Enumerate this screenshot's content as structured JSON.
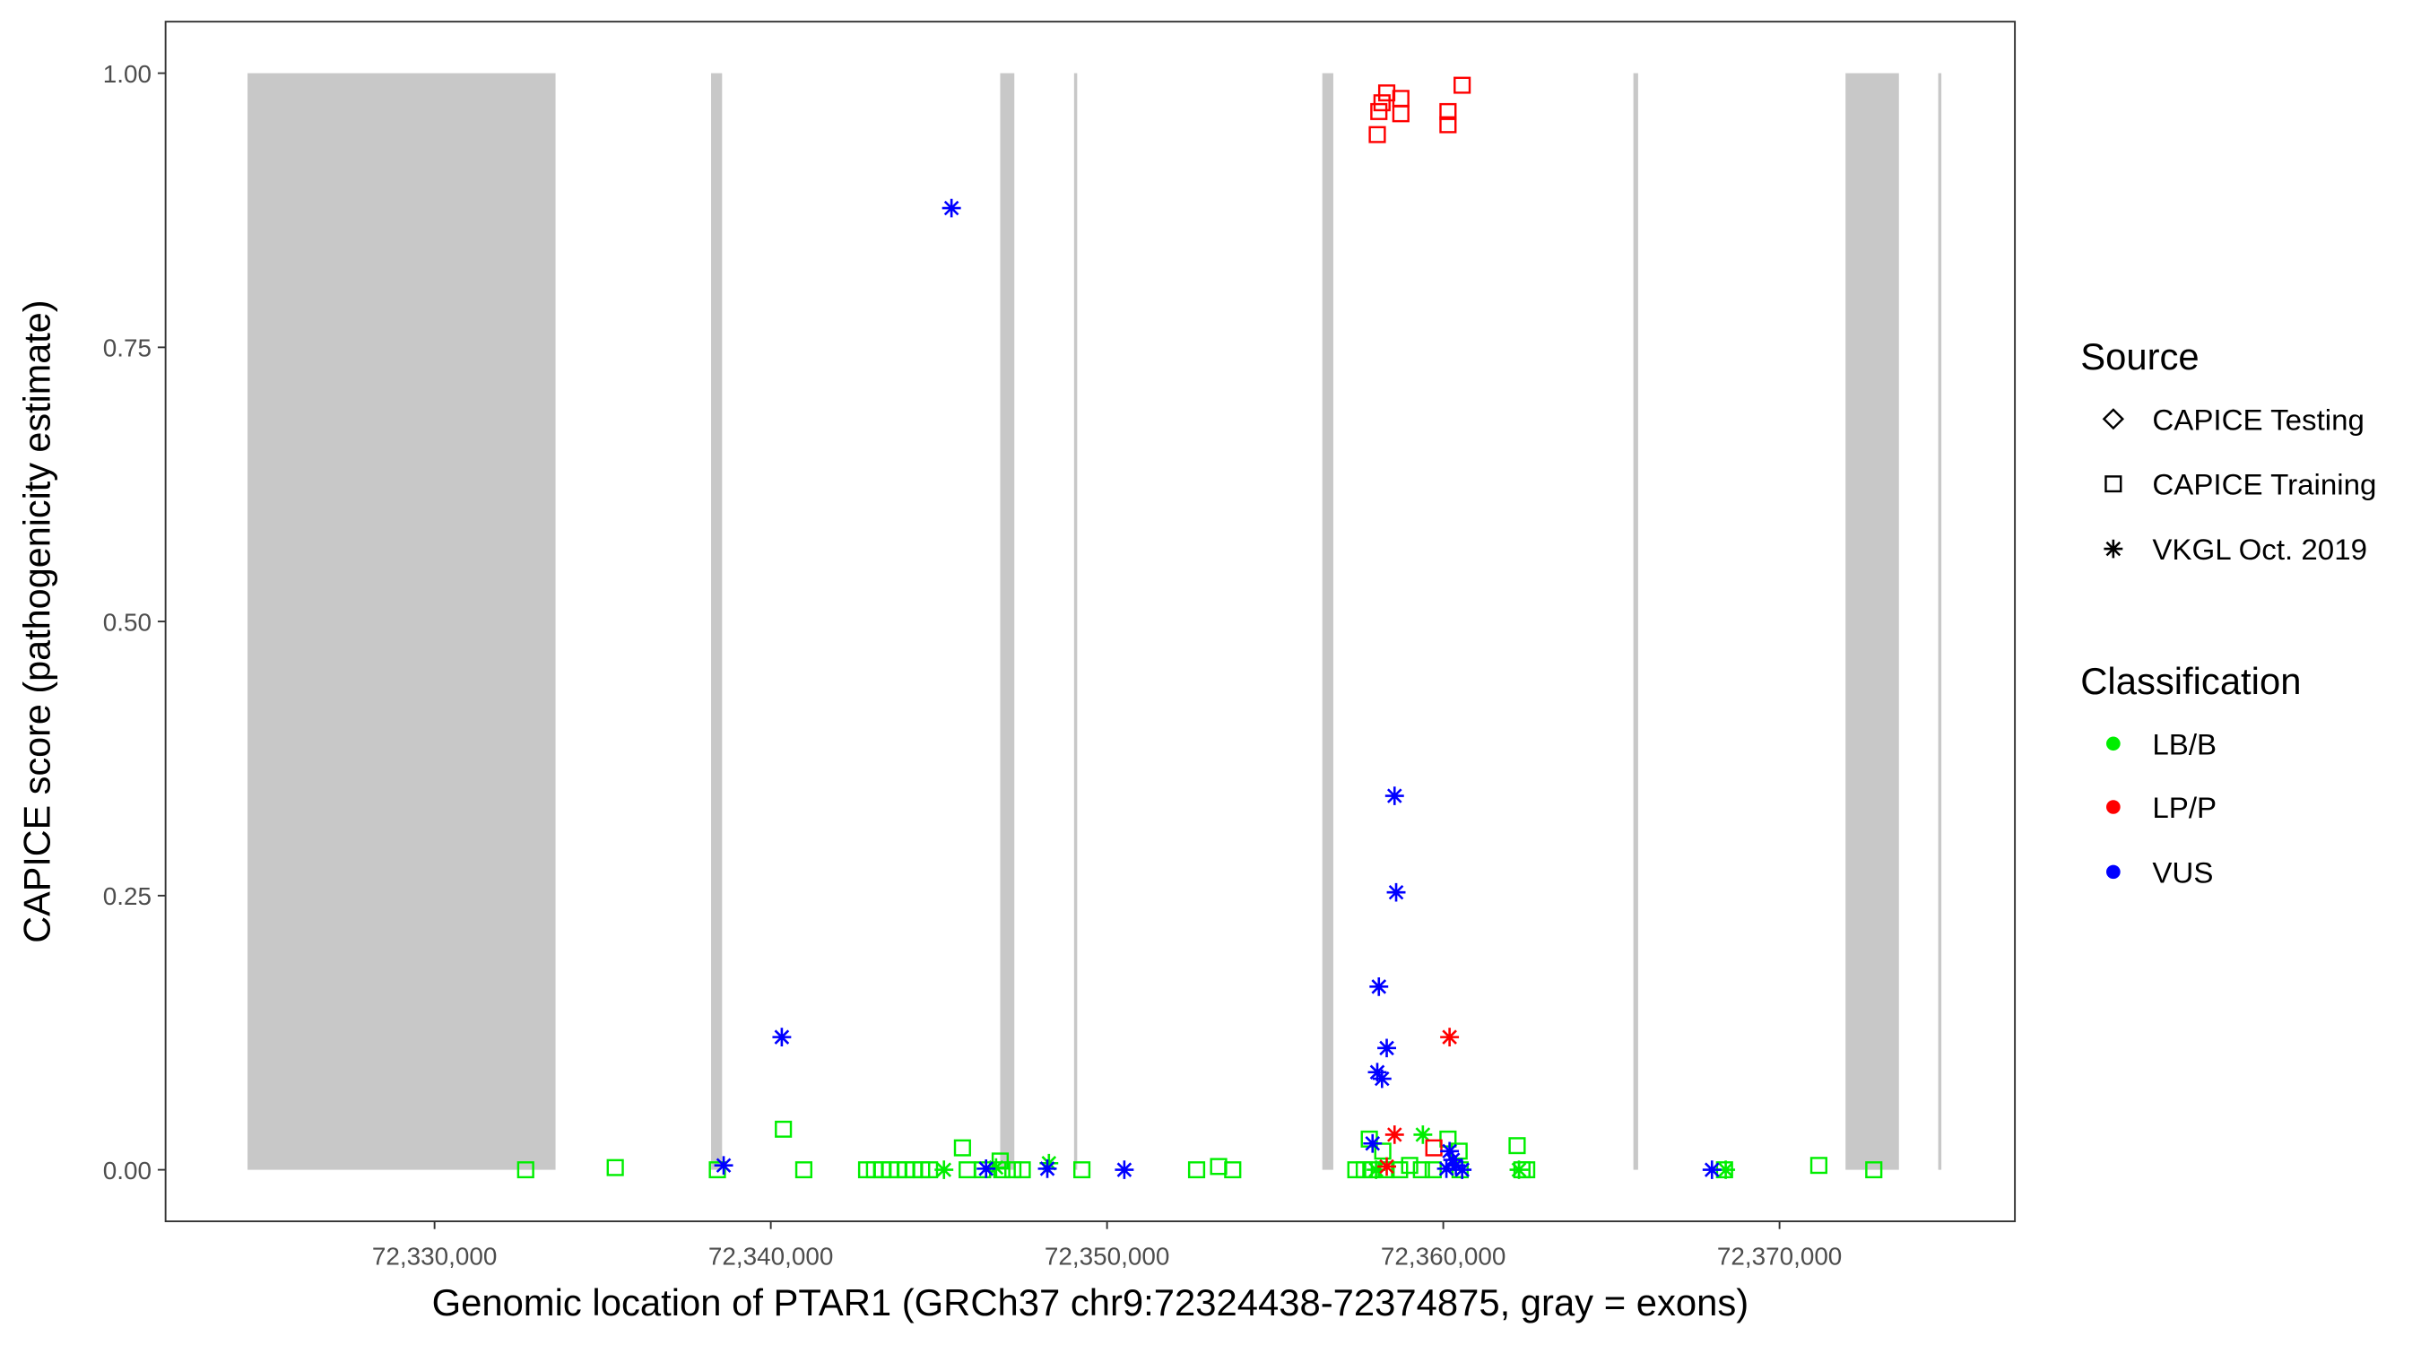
{
  "chart_data": {
    "type": "scatter",
    "xlabel": "Genomic location of PTAR1 (GRCh37 chr9:72324438-72374875, gray = exons)",
    "ylabel": "CAPICE score (pathogenicity estimate)",
    "xlim": [
      72322000,
      72377000
    ],
    "ylim": [
      -0.047,
      1.047
    ],
    "x_ticks": [
      72330000,
      72340000,
      72350000,
      72360000,
      72370000
    ],
    "x_tick_labels": [
      "72,330,000",
      "72,340,000",
      "72,350,000",
      "72,360,000",
      "72,370,000"
    ],
    "y_ticks": [
      0,
      0.25,
      0.5,
      0.75,
      1.0
    ],
    "y_tick_labels": [
      "0.00",
      "0.25",
      "0.50",
      "0.75",
      "1.00"
    ],
    "grid": false,
    "legend_placement": "right",
    "exons": [
      [
        72324438,
        72333598
      ],
      [
        72338224,
        72338551
      ],
      [
        72346822,
        72347243
      ],
      [
        72349019,
        72349112
      ],
      [
        72356402,
        72356729
      ],
      [
        72365654,
        72365794
      ],
      [
        72371963,
        72373551
      ],
      [
        72374720,
        72374813
      ]
    ],
    "exon_color": "#c8c8c8",
    "legend": {
      "source": {
        "title": "Source",
        "items": [
          {
            "label": "CAPICE Testing",
            "shape": "diamond"
          },
          {
            "label": "CAPICE Training",
            "shape": "square"
          },
          {
            "label": "VKGL Oct. 2019",
            "shape": "asterisk"
          }
        ]
      },
      "classification": {
        "title": "Classification",
        "items": [
          {
            "label": "LB/B",
            "color": "#00ee00"
          },
          {
            "label": "LP/P",
            "color": "#ff0000"
          },
          {
            "label": "VUS",
            "color": "#0000ff"
          }
        ]
      }
    },
    "points": [
      {
        "x": 72332710,
        "y": 0,
        "source": "CAPICE Training",
        "class": "LB/B"
      },
      {
        "x": 72335374,
        "y": 0.002,
        "source": "CAPICE Training",
        "class": "LB/B"
      },
      {
        "x": 72338411,
        "y": 0,
        "source": "CAPICE Training",
        "class": "LB/B"
      },
      {
        "x": 72340374,
        "y": 0.037,
        "source": "CAPICE Training",
        "class": "LB/B"
      },
      {
        "x": 72340981,
        "y": 0,
        "source": "CAPICE Training",
        "class": "LB/B"
      },
      {
        "x": 72342850,
        "y": 0,
        "source": "CAPICE Training",
        "class": "LB/B"
      },
      {
        "x": 72343084,
        "y": 0,
        "source": "CAPICE Training",
        "class": "LB/B"
      },
      {
        "x": 72343318,
        "y": 0,
        "source": "CAPICE Training",
        "class": "LB/B"
      },
      {
        "x": 72343551,
        "y": 0,
        "source": "CAPICE Training",
        "class": "LB/B"
      },
      {
        "x": 72343785,
        "y": 0,
        "source": "CAPICE Training",
        "class": "LB/B"
      },
      {
        "x": 72344019,
        "y": 0,
        "source": "CAPICE Training",
        "class": "LB/B"
      },
      {
        "x": 72344252,
        "y": 0,
        "source": "CAPICE Training",
        "class": "LB/B"
      },
      {
        "x": 72344486,
        "y": 0,
        "source": "CAPICE Training",
        "class": "LB/B"
      },
      {
        "x": 72344720,
        "y": 0,
        "source": "CAPICE Training",
        "class": "LB/B"
      },
      {
        "x": 72345150,
        "y": 0,
        "source": "VKGL Oct. 2019",
        "class": "LB/B"
      },
      {
        "x": 72345700,
        "y": 0.02,
        "source": "CAPICE Training",
        "class": "LB/B"
      },
      {
        "x": 72345841,
        "y": 0,
        "source": "CAPICE Training",
        "class": "LB/B"
      },
      {
        "x": 72346300,
        "y": 0,
        "source": "CAPICE Training",
        "class": "LB/B"
      },
      {
        "x": 72346822,
        "y": 0.008,
        "source": "CAPICE Training",
        "class": "LB/B"
      },
      {
        "x": 72346870,
        "y": 0,
        "source": "CAPICE Training",
        "class": "LB/B"
      },
      {
        "x": 72347200,
        "y": 0,
        "source": "CAPICE Training",
        "class": "LB/B"
      },
      {
        "x": 72347477,
        "y": 0,
        "source": "CAPICE Training",
        "class": "LB/B"
      },
      {
        "x": 72346700,
        "y": 0.002,
        "source": "VKGL Oct. 2019",
        "class": "LB/B"
      },
      {
        "x": 72348271,
        "y": 0.006,
        "source": "VKGL Oct. 2019",
        "class": "LB/B"
      },
      {
        "x": 72349252,
        "y": 0,
        "source": "CAPICE Training",
        "class": "LB/B"
      },
      {
        "x": 72352664,
        "y": 0,
        "source": "CAPICE Training",
        "class": "LB/B"
      },
      {
        "x": 72353318,
        "y": 0.003,
        "source": "CAPICE Training",
        "class": "LB/B"
      },
      {
        "x": 72353738,
        "y": 0,
        "source": "CAPICE Training",
        "class": "LB/B"
      },
      {
        "x": 72357400,
        "y": 0,
        "source": "CAPICE Training",
        "class": "LB/B"
      },
      {
        "x": 72357650,
        "y": 0,
        "source": "CAPICE Training",
        "class": "LB/B"
      },
      {
        "x": 72357800,
        "y": 0.028,
        "source": "CAPICE Training",
        "class": "LB/B"
      },
      {
        "x": 72357900,
        "y": 0,
        "source": "CAPICE Training",
        "class": "LB/B"
      },
      {
        "x": 72358200,
        "y": 0.017,
        "source": "CAPICE Training",
        "class": "LB/B"
      },
      {
        "x": 72358300,
        "y": 0,
        "source": "CAPICE Training",
        "class": "LB/B"
      },
      {
        "x": 72358700,
        "y": 0,
        "source": "CAPICE Training",
        "class": "LB/B"
      },
      {
        "x": 72359000,
        "y": 0.004,
        "source": "CAPICE Training",
        "class": "LB/B"
      },
      {
        "x": 72359350,
        "y": 0,
        "source": "CAPICE Training",
        "class": "LB/B"
      },
      {
        "x": 72359700,
        "y": 0,
        "source": "CAPICE Training",
        "class": "LB/B"
      },
      {
        "x": 72360140,
        "y": 0.028,
        "source": "CAPICE Training",
        "class": "LB/B"
      },
      {
        "x": 72360470,
        "y": 0.017,
        "source": "CAPICE Training",
        "class": "LB/B"
      },
      {
        "x": 72360500,
        "y": 0,
        "source": "CAPICE Training",
        "class": "LB/B"
      },
      {
        "x": 72362196,
        "y": 0.022,
        "source": "CAPICE Training",
        "class": "LB/B"
      },
      {
        "x": 72362340,
        "y": 0,
        "source": "CAPICE Training",
        "class": "LB/B"
      },
      {
        "x": 72362480,
        "y": 0,
        "source": "CAPICE Training",
        "class": "LB/B"
      },
      {
        "x": 72368364,
        "y": 0,
        "source": "CAPICE Training",
        "class": "LB/B"
      },
      {
        "x": 72371168,
        "y": 0.004,
        "source": "CAPICE Training",
        "class": "LB/B"
      },
      {
        "x": 72372804,
        "y": 0,
        "source": "CAPICE Training",
        "class": "LB/B"
      },
      {
        "x": 72359393,
        "y": 0.032,
        "source": "VKGL Oct. 2019",
        "class": "LB/B"
      },
      {
        "x": 72358000,
        "y": 0,
        "source": "VKGL Oct. 2019",
        "class": "LB/B"
      },
      {
        "x": 72362250,
        "y": 0,
        "source": "VKGL Oct. 2019",
        "class": "LB/B"
      },
      {
        "x": 72368400,
        "y": 0,
        "source": "VKGL Oct. 2019",
        "class": "LB/B"
      },
      {
        "x": 72359720,
        "y": 0.02,
        "source": "CAPICE Training",
        "class": "LP/P"
      },
      {
        "x": 72358037,
        "y": 0.944,
        "source": "CAPICE Training",
        "class": "LP/P"
      },
      {
        "x": 72358084,
        "y": 0.965,
        "source": "CAPICE Training",
        "class": "LP/P"
      },
      {
        "x": 72358178,
        "y": 0.973,
        "source": "CAPICE Training",
        "class": "LP/P"
      },
      {
        "x": 72358318,
        "y": 0.982,
        "source": "CAPICE Training",
        "class": "LP/P"
      },
      {
        "x": 72358738,
        "y": 0.977,
        "source": "CAPICE Training",
        "class": "LP/P"
      },
      {
        "x": 72358738,
        "y": 0.963,
        "source": "CAPICE Training",
        "class": "LP/P"
      },
      {
        "x": 72360140,
        "y": 0.965,
        "source": "CAPICE Training",
        "class": "LP/P"
      },
      {
        "x": 72360140,
        "y": 0.953,
        "source": "CAPICE Training",
        "class": "LP/P"
      },
      {
        "x": 72360561,
        "y": 0.989,
        "source": "CAPICE Training",
        "class": "LP/P"
      },
      {
        "x": 72360187,
        "y": 0.121,
        "source": "VKGL Oct. 2019",
        "class": "LP/P"
      },
      {
        "x": 72358551,
        "y": 0.032,
        "source": "VKGL Oct. 2019",
        "class": "LP/P"
      },
      {
        "x": 72358318,
        "y": 0.003,
        "source": "VKGL Oct. 2019",
        "class": "LP/P"
      },
      {
        "x": 72345374,
        "y": 0.877,
        "source": "VKGL Oct. 2019",
        "class": "VUS"
      },
      {
        "x": 72340327,
        "y": 0.121,
        "source": "VKGL Oct. 2019",
        "class": "VUS"
      },
      {
        "x": 72338598,
        "y": 0.004,
        "source": "VKGL Oct. 2019",
        "class": "VUS"
      },
      {
        "x": 72346402,
        "y": 0.001,
        "source": "VKGL Oct. 2019",
        "class": "VUS"
      },
      {
        "x": 72348224,
        "y": 0.001,
        "source": "VKGL Oct. 2019",
        "class": "VUS"
      },
      {
        "x": 72350514,
        "y": 0,
        "source": "VKGL Oct. 2019",
        "class": "VUS"
      },
      {
        "x": 72367991,
        "y": 0,
        "source": "VKGL Oct. 2019",
        "class": "VUS"
      },
      {
        "x": 72358551,
        "y": 0.341,
        "source": "VKGL Oct. 2019",
        "class": "VUS"
      },
      {
        "x": 72358598,
        "y": 0.253,
        "source": "VKGL Oct. 2019",
        "class": "VUS"
      },
      {
        "x": 72358084,
        "y": 0.167,
        "source": "VKGL Oct. 2019",
        "class": "VUS"
      },
      {
        "x": 72358318,
        "y": 0.111,
        "source": "VKGL Oct. 2019",
        "class": "VUS"
      },
      {
        "x": 72358037,
        "y": 0.089,
        "source": "VKGL Oct. 2019",
        "class": "VUS"
      },
      {
        "x": 72358178,
        "y": 0.083,
        "source": "VKGL Oct. 2019",
        "class": "VUS"
      },
      {
        "x": 72357897,
        "y": 0.024,
        "source": "VKGL Oct. 2019",
        "class": "VUS"
      },
      {
        "x": 72360187,
        "y": 0.017,
        "source": "VKGL Oct. 2019",
        "class": "VUS"
      },
      {
        "x": 72360280,
        "y": 0.009,
        "source": "VKGL Oct. 2019",
        "class": "VUS"
      },
      {
        "x": 72360093,
        "y": 0.001,
        "source": "VKGL Oct. 2019",
        "class": "VUS"
      },
      {
        "x": 72360374,
        "y": 0.004,
        "source": "VKGL Oct. 2019",
        "class": "VUS"
      },
      {
        "x": 72360561,
        "y": 0,
        "source": "VKGL Oct. 2019",
        "class": "VUS"
      }
    ]
  }
}
